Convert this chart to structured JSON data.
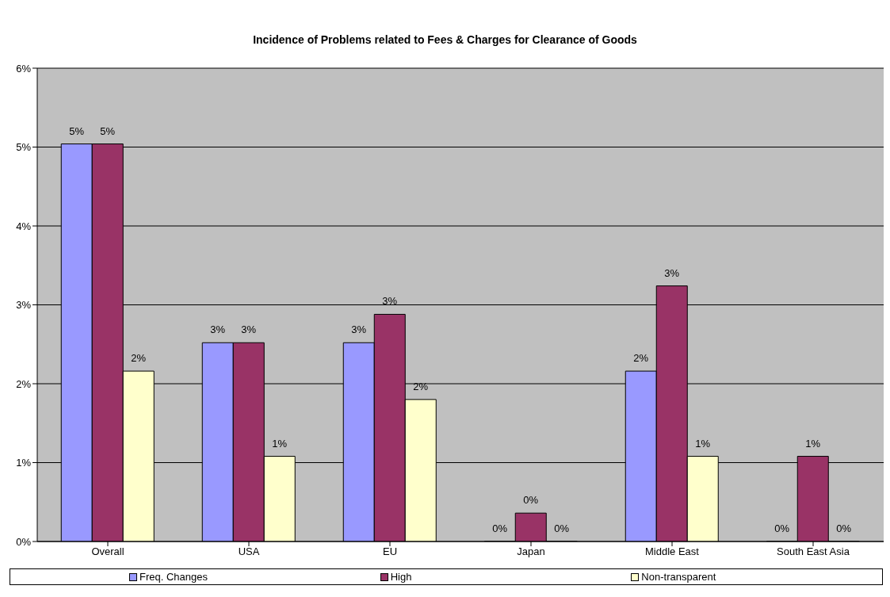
{
  "chart_data": {
    "type": "bar",
    "title": "Incidence of Problems related to Fees & Charges for Clearance of Goods",
    "categories": [
      "Overall",
      "USA",
      "EU",
      "Japan",
      "Middle East",
      "South East Asia"
    ],
    "series": [
      {
        "name": "Freq. Changes",
        "color": "#9999ff",
        "values": [
          5.04,
          2.52,
          2.52,
          0,
          2.16,
          0
        ],
        "value_labels": [
          "5%",
          "3%",
          "3%",
          "0%",
          "2%",
          "0%"
        ]
      },
      {
        "name": "High",
        "color": "#993366",
        "values": [
          5.04,
          2.52,
          2.88,
          0.36,
          3.24,
          1.08
        ],
        "value_labels": [
          "5%",
          "3%",
          "3%",
          "0%",
          "3%",
          "1%"
        ]
      },
      {
        "name": "Non-transparent",
        "color": "#ffffcc",
        "values": [
          2.16,
          1.08,
          1.8,
          0,
          1.08,
          0
        ],
        "value_labels": [
          "2%",
          "1%",
          "2%",
          "0%",
          "1%",
          "0%"
        ]
      }
    ],
    "ylim": [
      0,
      6
    ],
    "yticks": [
      {
        "value": 0,
        "label": "0%"
      },
      {
        "value": 1,
        "label": "1%"
      },
      {
        "value": 2,
        "label": "2%"
      },
      {
        "value": 3,
        "label": "3%"
      },
      {
        "value": 4,
        "label": "4%"
      },
      {
        "value": 5,
        "label": "5%"
      },
      {
        "value": 6,
        "label": "6%"
      }
    ],
    "grid": "y",
    "legend": "bottom"
  }
}
